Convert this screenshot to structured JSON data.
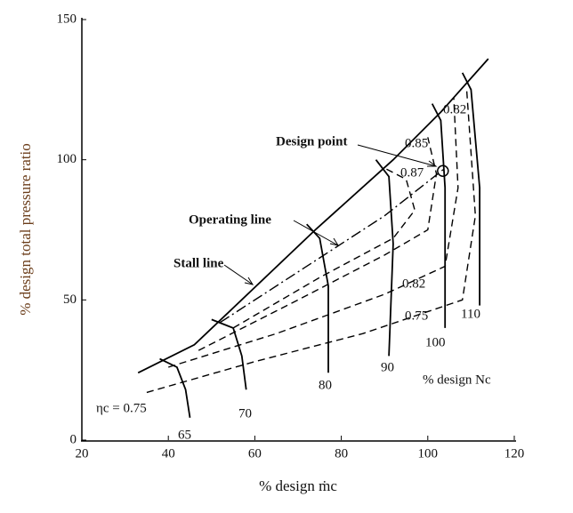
{
  "chart_data": {
    "type": "line",
    "xlabel": "% design ṁc",
    "ylabel": "% design total pressure ratio",
    "xlim": [
      20,
      120
    ],
    "xticks": [
      20,
      40,
      60,
      80,
      100,
      120
    ],
    "ylim": [
      0,
      150
    ],
    "yticks": [
      0,
      50,
      100,
      150
    ],
    "series": [
      {
        "name": "Stall line",
        "style": "solid",
        "color": "#000",
        "x": [
          33,
          46,
          74,
          92,
          103,
          114
        ],
        "values": [
          24,
          34,
          75,
          100,
          117,
          136
        ]
      },
      {
        "name": "Operating line",
        "style": "dashdot",
        "color": "#000",
        "x": [
          52,
          70,
          90,
          104
        ],
        "values": [
          42,
          60,
          80,
          97
        ]
      },
      {
        "name": "65",
        "style": "solid",
        "color": "#000",
        "x": [
          38,
          42,
          44,
          45
        ],
        "values": [
          29,
          26,
          18,
          8
        ]
      },
      {
        "name": "70",
        "style": "solid",
        "color": "#000",
        "x": [
          50,
          55,
          57,
          58
        ],
        "values": [
          43,
          40,
          30,
          18
        ]
      },
      {
        "name": "80",
        "style": "solid",
        "color": "#000",
        "x": [
          72,
          75,
          77,
          77
        ],
        "values": [
          77,
          72,
          55,
          24
        ]
      },
      {
        "name": "90",
        "style": "solid",
        "color": "#000",
        "x": [
          88,
          91,
          92,
          91
        ],
        "values": [
          100,
          94,
          70,
          30
        ]
      },
      {
        "name": "100",
        "style": "solid",
        "color": "#000",
        "x": [
          101,
          103,
          104,
          104
        ],
        "values": [
          120,
          114,
          90,
          40
        ]
      },
      {
        "name": "110",
        "style": "solid",
        "color": "#000",
        "x": [
          108,
          110,
          112,
          112
        ],
        "values": [
          131,
          125,
          90,
          48
        ]
      },
      {
        "name": "0.75",
        "style": "dashed",
        "color": "#000",
        "x": [
          35,
          60,
          85,
          108,
          111,
          109
        ],
        "values": [
          17,
          28,
          38,
          50,
          80,
          125
        ]
      },
      {
        "name": "0.82",
        "style": "dashed",
        "color": "#000",
        "x": [
          40,
          65,
          90,
          104,
          107,
          106
        ],
        "values": [
          26,
          38,
          52,
          62,
          90,
          122
        ]
      },
      {
        "name": "0.85",
        "style": "dashed",
        "color": "#000",
        "x": [
          47,
          70,
          90,
          100,
          102,
          100
        ],
        "values": [
          32,
          50,
          66,
          75,
          95,
          108
        ]
      },
      {
        "name": "0.87",
        "style": "dashed",
        "color": "#000",
        "x": [
          55,
          75,
          92,
          97,
          95,
          90
        ],
        "values": [
          40,
          58,
          72,
          82,
          93,
          97
        ]
      }
    ],
    "design_point": {
      "label": "Design point",
      "x": 103.5,
      "y": 96
    },
    "annotations": [
      "% design Nc",
      "ηc = 0.75",
      "0.82"
    ]
  }
}
